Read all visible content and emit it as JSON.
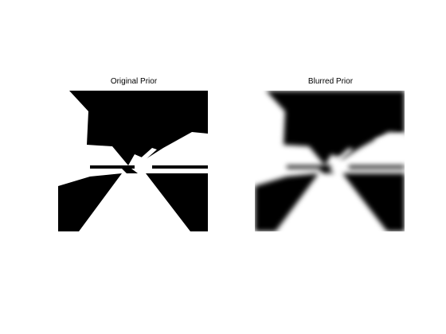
{
  "figure": {
    "background": "#ffffff",
    "panels": [
      {
        "title": "Original Prior",
        "blurred": false,
        "foreground": "#000000",
        "background": "#ffffff"
      },
      {
        "title": "Blurred Prior",
        "blurred": true,
        "foreground": "#000000",
        "background": "#ffffff"
      }
    ]
  }
}
